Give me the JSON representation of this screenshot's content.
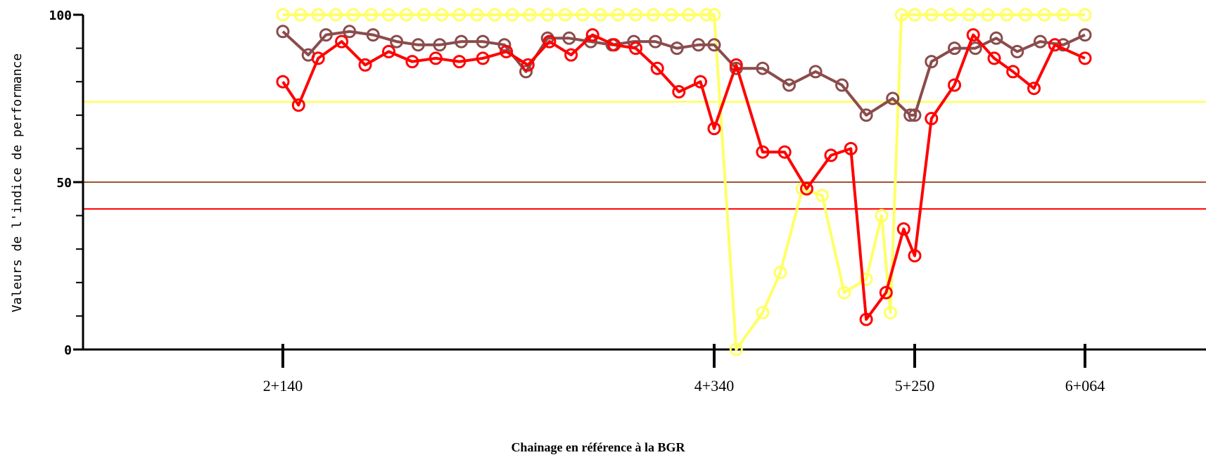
{
  "chart_data": {
    "type": "line",
    "title": "",
    "xlabel": "Chainage en référence à la BGR",
    "ylabel": "Valeurs de l'indice de performance",
    "ylim": [
      0,
      100
    ],
    "y_ticks": [
      0,
      10,
      20,
      30,
      40,
      50,
      60,
      70,
      80,
      90,
      100
    ],
    "y_tick_labels": [
      {
        "value": 0,
        "label": "0"
      },
      {
        "value": 50,
        "label": "50"
      },
      {
        "value": 100,
        "label": "100"
      }
    ],
    "xlim": [
      1140,
      6064
    ],
    "x_ticks": [
      {
        "value": 2140,
        "label": "2+140"
      },
      {
        "value": 4340,
        "label": "4+340"
      },
      {
        "value": 5250,
        "label": "5+250"
      },
      {
        "value": 6064,
        "label": "6+064"
      }
    ],
    "grid": false,
    "legend": "none",
    "reference_lines": [
      {
        "value": 74,
        "color": "#ffff33"
      },
      {
        "value": 50,
        "color": "#a0522d"
      },
      {
        "value": 42,
        "color": "#ff0000"
      }
    ],
    "series": [
      {
        "color": "#ffff66",
        "marker": "circle",
        "x": [
          2140,
          2230,
          2320,
          2410,
          2500,
          2590,
          2680,
          2770,
          2860,
          2950,
          3040,
          3130,
          3220,
          3310,
          3400,
          3490,
          3580,
          3670,
          3760,
          3850,
          3940,
          4030,
          4120,
          4210,
          4300,
          4340,
          4440,
          4560,
          4640,
          4740,
          4830,
          4930,
          5030,
          5100,
          5140,
          5190,
          5250,
          5330,
          5420,
          5510,
          5600,
          5690,
          5780,
          5870,
          5960,
          6064
        ],
        "values": [
          100,
          100,
          100,
          100,
          100,
          100,
          100,
          100,
          100,
          100,
          100,
          100,
          100,
          100,
          100,
          100,
          100,
          100,
          100,
          100,
          100,
          100,
          100,
          100,
          100,
          100,
          0,
          11,
          23,
          48,
          46,
          17,
          21,
          40,
          11,
          100,
          100,
          100,
          100,
          100,
          100,
          100,
          100,
          100,
          100,
          100
        ]
      },
      {
        "color": "#8b4c4c",
        "marker": "circle",
        "x": [
          2140,
          2270,
          2360,
          2480,
          2600,
          2720,
          2830,
          2940,
          3050,
          3160,
          3270,
          3380,
          3490,
          3600,
          3710,
          3820,
          3930,
          4040,
          4150,
          4260,
          4340,
          4440,
          4560,
          4680,
          4800,
          4920,
          5030,
          5150,
          5230,
          5250,
          5330,
          5440,
          5540,
          5640,
          5740,
          5850,
          5960,
          6064
        ],
        "values": [
          95,
          88,
          94,
          95,
          94,
          92,
          91,
          91,
          92,
          92,
          91,
          83,
          93,
          93,
          92,
          91,
          92,
          92,
          90,
          91,
          91,
          84,
          84,
          79,
          83,
          79,
          70,
          75,
          70,
          70,
          86,
          90,
          90,
          93,
          89,
          92,
          91,
          94
        ]
      },
      {
        "color": "#ff0000",
        "marker": "circle",
        "x": [
          2140,
          2220,
          2320,
          2440,
          2560,
          2680,
          2800,
          2920,
          3040,
          3160,
          3280,
          3390,
          3500,
          3610,
          3720,
          3830,
          3940,
          4050,
          4160,
          4270,
          4340,
          4440,
          4560,
          4660,
          4760,
          4870,
          4960,
          5030,
          5120,
          5200,
          5250,
          5330,
          5440,
          5530,
          5630,
          5720,
          5820,
          5920,
          6064
        ],
        "values": [
          80,
          73,
          87,
          92,
          85,
          89,
          86,
          87,
          86,
          87,
          89,
          85,
          92,
          88,
          94,
          91,
          90,
          84,
          77,
          80,
          66,
          85,
          59,
          59,
          48,
          58,
          60,
          9,
          17,
          36,
          28,
          69,
          79,
          94,
          87,
          83,
          78,
          91,
          87
        ]
      }
    ]
  }
}
